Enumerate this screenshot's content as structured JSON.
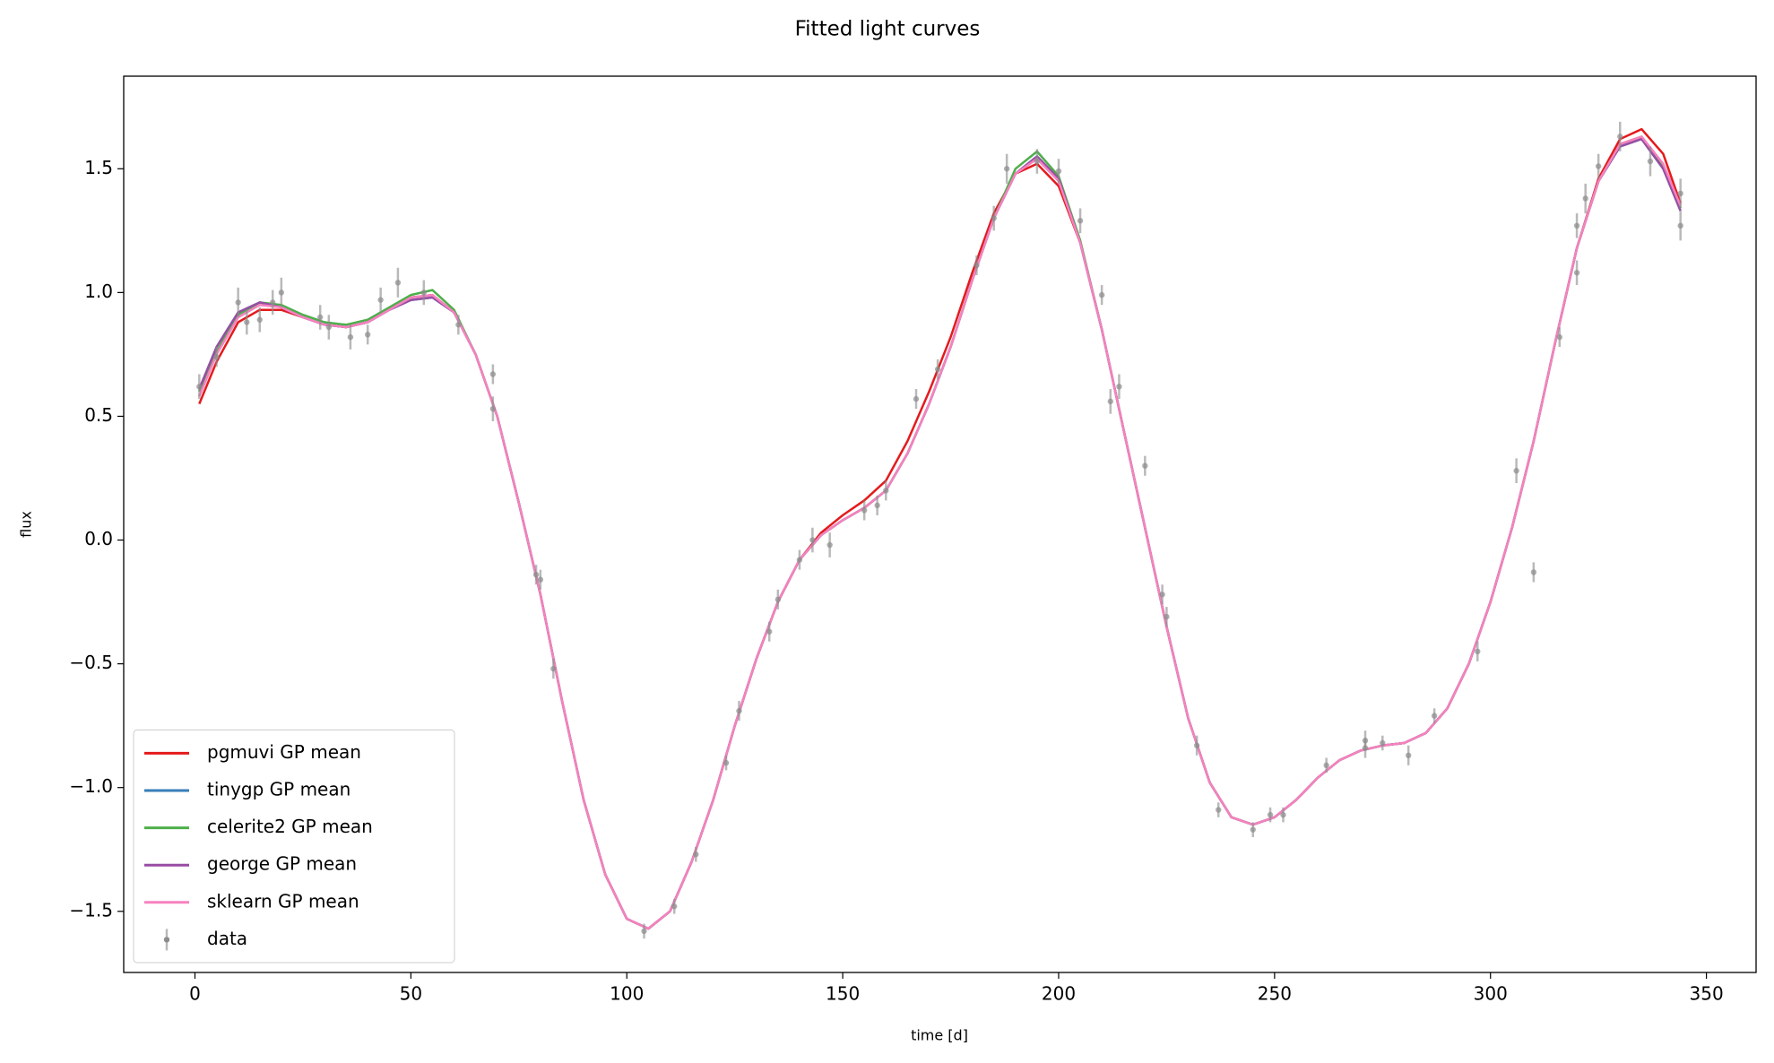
{
  "chart_data": {
    "type": "line",
    "title": "Fitted light curves",
    "x_label": "time [d]",
    "y_label": "flux",
    "xlim": [
      -16.5,
      361.5
    ],
    "ylim": [
      -1.747,
      1.874
    ],
    "xticks": [
      0,
      50,
      100,
      150,
      200,
      250,
      300,
      350
    ],
    "yticks": [
      {
        "value": -1.5,
        "label": "−1.5"
      },
      {
        "value": -1.0,
        "label": "−1.0"
      },
      {
        "value": -0.5,
        "label": "−0.5"
      },
      {
        "value": 0.0,
        "label": "0.0"
      },
      0.5,
      {
        "value": 1.0,
        "label": "1.0"
      },
      1.5
    ],
    "legend": "lower left",
    "x": [
      1,
      5,
      10,
      15,
      20,
      25,
      30,
      35,
      40,
      45,
      50,
      55,
      60,
      65,
      70,
      75,
      80,
      85,
      90,
      95,
      100,
      105,
      110,
      115,
      120,
      125,
      130,
      135,
      140,
      145,
      150,
      155,
      160,
      165,
      170,
      175,
      180,
      185,
      190,
      195,
      200,
      205,
      210,
      215,
      220,
      225,
      230,
      235,
      240,
      245,
      250,
      255,
      260,
      265,
      270,
      275,
      280,
      285,
      290,
      295,
      300,
      305,
      310,
      315,
      320,
      325,
      330,
      335,
      340,
      344
    ],
    "series": [
      {
        "name": "pgmuvi GP mean",
        "color": "#e41a1c",
        "values": [
          0.55,
          0.72,
          0.88,
          0.93,
          0.93,
          0.9,
          0.87,
          0.86,
          0.88,
          0.93,
          0.98,
          0.99,
          0.92,
          0.75,
          0.5,
          0.15,
          -0.22,
          -0.65,
          -1.05,
          -1.35,
          -1.53,
          -1.57,
          -1.5,
          -1.3,
          -1.05,
          -0.75,
          -0.48,
          -0.25,
          -0.08,
          0.03,
          0.1,
          0.16,
          0.24,
          0.4,
          0.6,
          0.82,
          1.08,
          1.32,
          1.48,
          1.52,
          1.43,
          1.2,
          0.85,
          0.45,
          0.05,
          -0.35,
          -0.72,
          -0.98,
          -1.12,
          -1.15,
          -1.12,
          -1.05,
          -0.96,
          -0.89,
          -0.85,
          -0.83,
          -0.82,
          -0.78,
          -0.68,
          -0.5,
          -0.25,
          0.05,
          0.4,
          0.8,
          1.18,
          1.46,
          1.62,
          1.66,
          1.56,
          1.36
        ]
      },
      {
        "name": "tinygp GP mean",
        "color": "#377eb8",
        "values": [
          0.61,
          0.78,
          0.92,
          0.96,
          0.94,
          0.9,
          0.87,
          0.86,
          0.88,
          0.93,
          0.97,
          0.98,
          0.92,
          0.75,
          0.5,
          0.15,
          -0.22,
          -0.65,
          -1.05,
          -1.35,
          -1.53,
          -1.57,
          -1.5,
          -1.3,
          -1.05,
          -0.75,
          -0.48,
          -0.25,
          -0.08,
          0.02,
          0.08,
          0.13,
          0.2,
          0.35,
          0.55,
          0.78,
          1.05,
          1.3,
          1.48,
          1.55,
          1.46,
          1.2,
          0.85,
          0.45,
          0.05,
          -0.35,
          -0.72,
          -0.98,
          -1.12,
          -1.15,
          -1.12,
          -1.05,
          -0.96,
          -0.89,
          -0.85,
          -0.83,
          -0.82,
          -0.78,
          -0.68,
          -0.5,
          -0.25,
          0.05,
          0.4,
          0.8,
          1.18,
          1.45,
          1.59,
          1.62,
          1.5,
          1.33
        ]
      },
      {
        "name": "celerite2 GP mean",
        "color": "#4daf4a",
        "values": [
          0.6,
          0.76,
          0.91,
          0.96,
          0.95,
          0.91,
          0.88,
          0.87,
          0.89,
          0.94,
          0.99,
          1.01,
          0.93,
          0.75,
          0.5,
          0.15,
          -0.22,
          -0.65,
          -1.05,
          -1.35,
          -1.53,
          -1.57,
          -1.5,
          -1.3,
          -1.05,
          -0.75,
          -0.48,
          -0.25,
          -0.08,
          0.02,
          0.08,
          0.13,
          0.2,
          0.35,
          0.55,
          0.78,
          1.05,
          1.3,
          1.5,
          1.57,
          1.47,
          1.21,
          0.85,
          0.45,
          0.05,
          -0.35,
          -0.72,
          -0.98,
          -1.12,
          -1.15,
          -1.12,
          -1.05,
          -0.96,
          -0.89,
          -0.85,
          -0.83,
          -0.82,
          -0.78,
          -0.68,
          -0.5,
          -0.25,
          0.05,
          0.4,
          0.8,
          1.18,
          1.45,
          1.6,
          1.63,
          1.51,
          1.34
        ]
      },
      {
        "name": "george GP mean",
        "color": "#984ea3",
        "values": [
          0.61,
          0.78,
          0.92,
          0.96,
          0.94,
          0.9,
          0.87,
          0.86,
          0.88,
          0.93,
          0.97,
          0.98,
          0.92,
          0.75,
          0.5,
          0.15,
          -0.22,
          -0.65,
          -1.05,
          -1.35,
          -1.53,
          -1.57,
          -1.5,
          -1.3,
          -1.05,
          -0.75,
          -0.48,
          -0.25,
          -0.08,
          0.02,
          0.08,
          0.13,
          0.2,
          0.35,
          0.55,
          0.78,
          1.05,
          1.3,
          1.48,
          1.55,
          1.46,
          1.2,
          0.85,
          0.45,
          0.05,
          -0.35,
          -0.72,
          -0.98,
          -1.12,
          -1.15,
          -1.12,
          -1.05,
          -0.96,
          -0.89,
          -0.85,
          -0.83,
          -0.82,
          -0.78,
          -0.68,
          -0.5,
          -0.25,
          0.05,
          0.4,
          0.8,
          1.18,
          1.45,
          1.59,
          1.62,
          1.5,
          1.33
        ]
      },
      {
        "name": "sklearn GP mean",
        "color": "#f781bf",
        "values": [
          0.58,
          0.75,
          0.9,
          0.95,
          0.94,
          0.9,
          0.87,
          0.86,
          0.88,
          0.93,
          0.98,
          0.99,
          0.92,
          0.75,
          0.5,
          0.15,
          -0.22,
          -0.65,
          -1.05,
          -1.35,
          -1.53,
          -1.57,
          -1.5,
          -1.3,
          -1.05,
          -0.75,
          -0.48,
          -0.25,
          -0.08,
          0.02,
          0.08,
          0.13,
          0.2,
          0.35,
          0.55,
          0.78,
          1.05,
          1.3,
          1.48,
          1.54,
          1.45,
          1.2,
          0.85,
          0.45,
          0.05,
          -0.35,
          -0.72,
          -0.98,
          -1.12,
          -1.15,
          -1.12,
          -1.05,
          -0.96,
          -0.89,
          -0.85,
          -0.83,
          -0.82,
          -0.78,
          -0.68,
          -0.5,
          -0.25,
          0.05,
          0.4,
          0.8,
          1.18,
          1.45,
          1.6,
          1.63,
          1.52,
          1.35
        ]
      }
    ],
    "points": {
      "name": "data",
      "color": "#8c8c8c",
      "x": [
        1,
        5,
        10,
        12,
        15,
        18,
        20,
        29,
        31,
        36,
        40,
        43,
        47,
        53,
        61,
        69,
        69,
        79,
        80,
        83,
        104,
        111,
        116,
        123,
        126,
        133,
        135,
        140,
        143,
        147,
        155,
        158,
        160,
        167,
        172,
        181,
        185,
        188,
        195,
        200,
        205,
        210,
        212,
        214,
        220,
        224,
        225,
        232,
        237,
        245,
        249,
        252,
        262,
        271,
        271,
        275,
        281,
        287,
        297,
        306,
        310,
        316,
        320,
        320,
        322,
        325,
        330,
        337,
        344,
        344
      ],
      "y": [
        0.62,
        0.74,
        0.96,
        0.88,
        0.89,
        0.96,
        1.0,
        0.9,
        0.86,
        0.82,
        0.83,
        0.97,
        1.04,
        1.0,
        0.87,
        0.67,
        0.53,
        -0.14,
        -0.16,
        -0.52,
        -1.58,
        -1.48,
        -1.27,
        -0.9,
        -0.69,
        -0.37,
        -0.24,
        -0.08,
        0.0,
        -0.02,
        0.12,
        0.14,
        0.2,
        0.57,
        0.69,
        1.11,
        1.3,
        1.5,
        1.53,
        1.49,
        1.29,
        0.99,
        0.56,
        0.62,
        0.3,
        -0.22,
        -0.31,
        -0.83,
        -1.09,
        -1.17,
        -1.11,
        -1.11,
        -0.91,
        -0.84,
        -0.81,
        -0.82,
        -0.87,
        -0.71,
        -0.45,
        0.28,
        -0.13,
        0.82,
        1.27,
        1.08,
        1.38,
        1.51,
        1.63,
        1.53,
        1.27,
        1.4
      ],
      "yerr": [
        0.05,
        0.04,
        0.06,
        0.05,
        0.05,
        0.05,
        0.06,
        0.05,
        0.05,
        0.05,
        0.04,
        0.05,
        0.06,
        0.05,
        0.04,
        0.04,
        0.05,
        0.04,
        0.04,
        0.04,
        0.03,
        0.03,
        0.03,
        0.03,
        0.04,
        0.04,
        0.04,
        0.04,
        0.05,
        0.05,
        0.04,
        0.04,
        0.04,
        0.04,
        0.04,
        0.04,
        0.05,
        0.06,
        0.05,
        0.05,
        0.05,
        0.04,
        0.05,
        0.05,
        0.04,
        0.04,
        0.04,
        0.04,
        0.03,
        0.03,
        0.03,
        0.03,
        0.03,
        0.04,
        0.04,
        0.03,
        0.04,
        0.03,
        0.04,
        0.05,
        0.04,
        0.04,
        0.05,
        0.05,
        0.06,
        0.05,
        0.06,
        0.06,
        0.06,
        0.06
      ]
    }
  }
}
